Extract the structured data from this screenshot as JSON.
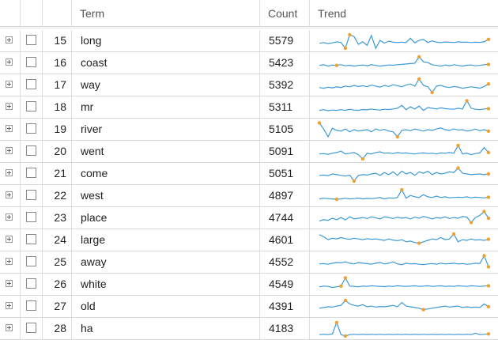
{
  "header": {
    "term": "Term",
    "count": "Count",
    "trend": "Trend"
  },
  "colors": {
    "line": "#3d9ad6",
    "marker": "#f0a030",
    "grid_line": "#d9d9d9",
    "text": "#222222"
  },
  "icons": {
    "expander": "plus-square-icon",
    "select": "checkbox-icon"
  },
  "rows": [
    {
      "index": "15",
      "term": "long",
      "count": "5579",
      "trend": [
        0.35,
        0.4,
        0.32,
        0.38,
        0.45,
        0.4,
        0.0,
        0.95,
        0.82,
        0.28,
        0.45,
        0.2,
        0.9,
        0.0,
        0.55,
        0.36,
        0.5,
        0.42,
        0.4,
        0.42,
        0.4,
        0.7,
        0.38,
        0.55,
        0.62,
        0.4,
        0.52,
        0.42,
        0.4,
        0.44,
        0.42,
        0.4,
        0.45,
        0.42,
        0.43,
        0.4,
        0.42,
        0.41,
        0.45,
        0.62
      ],
      "markers": [
        6,
        7,
        39
      ]
    },
    {
      "index": "16",
      "term": "coast",
      "count": "5423",
      "trend": [
        0.35,
        0.4,
        0.3,
        0.38,
        0.35,
        0.4,
        0.32,
        0.36,
        0.3,
        0.35,
        0.38,
        0.32,
        0.4,
        0.35,
        0.3,
        0.34,
        0.38,
        0.36,
        0.4,
        0.42,
        0.45,
        0.48,
        0.5,
        0.95,
        0.6,
        0.55,
        0.4,
        0.35,
        0.3,
        0.38,
        0.32,
        0.4,
        0.35,
        0.3,
        0.36,
        0.38,
        0.32,
        0.35,
        0.4,
        0.42
      ],
      "markers": [
        4,
        23,
        39
      ]
    },
    {
      "index": "17",
      "term": "way",
      "count": "5392",
      "trend": [
        0.35,
        0.3,
        0.38,
        0.32,
        0.4,
        0.35,
        0.45,
        0.4,
        0.5,
        0.42,
        0.48,
        0.4,
        0.52,
        0.45,
        0.38,
        0.5,
        0.42,
        0.55,
        0.48,
        0.4,
        0.52,
        0.6,
        0.45,
        0.95,
        0.5,
        0.4,
        0.0,
        0.45,
        0.5,
        0.4,
        0.35,
        0.42,
        0.38,
        0.3,
        0.35,
        0.4,
        0.36,
        0.3,
        0.42,
        0.6
      ],
      "markers": [
        23,
        26,
        39
      ]
    },
    {
      "index": "18",
      "term": "mr",
      "count": "5311",
      "trend": [
        0.3,
        0.35,
        0.28,
        0.32,
        0.3,
        0.35,
        0.3,
        0.38,
        0.32,
        0.3,
        0.36,
        0.34,
        0.4,
        0.35,
        0.32,
        0.38,
        0.36,
        0.4,
        0.45,
        0.65,
        0.35,
        0.55,
        0.4,
        0.6,
        0.3,
        0.5,
        0.45,
        0.4,
        0.48,
        0.42,
        0.4,
        0.38,
        0.45,
        0.4,
        0.98,
        0.45,
        0.38,
        0.35,
        0.4,
        0.42
      ],
      "markers": [
        34,
        39
      ]
    },
    {
      "index": "19",
      "term": "river",
      "count": "5105",
      "trend": [
        0.98,
        0.55,
        0.0,
        0.6,
        0.45,
        0.4,
        0.55,
        0.35,
        0.5,
        0.4,
        0.45,
        0.5,
        0.35,
        0.55,
        0.45,
        0.52,
        0.4,
        0.35,
        0.0,
        0.45,
        0.5,
        0.42,
        0.55,
        0.48,
        0.4,
        0.5,
        0.45,
        0.55,
        0.62,
        0.5,
        0.45,
        0.55,
        0.48,
        0.5,
        0.4,
        0.45,
        0.55,
        0.42,
        0.5,
        0.4
      ],
      "markers": [
        0,
        18,
        39
      ]
    },
    {
      "index": "20",
      "term": "went",
      "count": "5091",
      "trend": [
        0.35,
        0.38,
        0.32,
        0.4,
        0.45,
        0.55,
        0.35,
        0.4,
        0.45,
        0.3,
        0.0,
        0.4,
        0.35,
        0.45,
        0.5,
        0.4,
        0.42,
        0.38,
        0.45,
        0.4,
        0.42,
        0.38,
        0.35,
        0.4,
        0.42,
        0.38,
        0.4,
        0.35,
        0.42,
        0.4,
        0.45,
        0.4,
        0.95,
        0.35,
        0.4,
        0.3,
        0.38,
        0.42,
        0.8,
        0.45
      ],
      "markers": [
        10,
        32,
        39
      ]
    },
    {
      "index": "21",
      "term": "come",
      "count": "5051",
      "trend": [
        0.4,
        0.42,
        0.38,
        0.5,
        0.45,
        0.4,
        0.35,
        0.42,
        0.0,
        0.4,
        0.45,
        0.42,
        0.5,
        0.55,
        0.4,
        0.6,
        0.45,
        0.65,
        0.4,
        0.7,
        0.5,
        0.6,
        0.4,
        0.65,
        0.55,
        0.7,
        0.45,
        0.6,
        0.5,
        0.55,
        0.65,
        0.6,
        0.92,
        0.55,
        0.5,
        0.45,
        0.48,
        0.5,
        0.45,
        0.5
      ],
      "markers": [
        8,
        32,
        39
      ]
    },
    {
      "index": "22",
      "term": "west",
      "count": "4897",
      "trend": [
        0.3,
        0.35,
        0.32,
        0.3,
        0.28,
        0.3,
        0.35,
        0.3,
        0.32,
        0.36,
        0.3,
        0.34,
        0.32,
        0.35,
        0.4,
        0.3,
        0.38,
        0.35,
        0.4,
        0.95,
        0.35,
        0.55,
        0.45,
        0.4,
        0.6,
        0.45,
        0.4,
        0.5,
        0.4,
        0.45,
        0.38,
        0.4,
        0.42,
        0.4,
        0.45,
        0.38,
        0.42,
        0.4,
        0.38,
        0.42
      ],
      "markers": [
        4,
        19,
        39
      ]
    },
    {
      "index": "23",
      "term": "place",
      "count": "4744",
      "trend": [
        0.3,
        0.4,
        0.35,
        0.5,
        0.4,
        0.55,
        0.38,
        0.6,
        0.45,
        0.5,
        0.55,
        0.48,
        0.6,
        0.52,
        0.45,
        0.6,
        0.55,
        0.48,
        0.58,
        0.5,
        0.55,
        0.45,
        0.58,
        0.5,
        0.62,
        0.55,
        0.45,
        0.55,
        0.5,
        0.6,
        0.48,
        0.55,
        0.5,
        0.62,
        0.58,
        0.2,
        0.55,
        0.7,
        0.98,
        0.5
      ],
      "markers": [
        35,
        38,
        39
      ]
    },
    {
      "index": "24",
      "term": "large",
      "count": "4601",
      "trend": [
        0.9,
        0.75,
        0.55,
        0.65,
        0.6,
        0.7,
        0.62,
        0.58,
        0.65,
        0.6,
        0.55,
        0.62,
        0.58,
        0.6,
        0.55,
        0.5,
        0.6,
        0.52,
        0.48,
        0.55,
        0.4,
        0.45,
        0.35,
        0.3,
        0.4,
        0.5,
        0.6,
        0.55,
        0.7,
        0.55,
        0.6,
        0.95,
        0.4,
        0.55,
        0.5,
        0.6,
        0.52,
        0.55,
        0.5,
        0.58
      ],
      "markers": [
        23,
        31,
        39
      ]
    },
    {
      "index": "25",
      "term": "away",
      "count": "4552",
      "trend": [
        0.4,
        0.42,
        0.38,
        0.45,
        0.5,
        0.48,
        0.55,
        0.45,
        0.4,
        0.5,
        0.45,
        0.42,
        0.38,
        0.45,
        0.5,
        0.4,
        0.45,
        0.55,
        0.4,
        0.35,
        0.45,
        0.4,
        0.42,
        0.38,
        0.35,
        0.4,
        0.42,
        0.38,
        0.45,
        0.4,
        0.42,
        0.45,
        0.4,
        0.42,
        0.38,
        0.4,
        0.45,
        0.42,
        0.98,
        0.2
      ],
      "markers": [
        38,
        39
      ]
    },
    {
      "index": "26",
      "term": "white",
      "count": "4549",
      "trend": [
        0.35,
        0.4,
        0.38,
        0.3,
        0.35,
        0.4,
        0.98,
        0.4,
        0.38,
        0.35,
        0.4,
        0.38,
        0.42,
        0.4,
        0.38,
        0.36,
        0.4,
        0.38,
        0.42,
        0.4,
        0.38,
        0.4,
        0.42,
        0.38,
        0.4,
        0.42,
        0.38,
        0.4,
        0.42,
        0.38,
        0.4,
        0.38,
        0.42,
        0.4,
        0.38,
        0.42,
        0.4,
        0.38,
        0.4,
        0.42
      ],
      "markers": [
        5,
        6,
        39
      ]
    },
    {
      "index": "27",
      "term": "old",
      "count": "4391",
      "trend": [
        0.4,
        0.45,
        0.5,
        0.48,
        0.55,
        0.6,
        0.95,
        0.7,
        0.6,
        0.55,
        0.65,
        0.5,
        0.55,
        0.48,
        0.52,
        0.5,
        0.55,
        0.6,
        0.5,
        0.8,
        0.55,
        0.5,
        0.45,
        0.4,
        0.3,
        0.35,
        0.4,
        0.45,
        0.5,
        0.55,
        0.48,
        0.52,
        0.55,
        0.45,
        0.5,
        0.45,
        0.48,
        0.45,
        0.7,
        0.5
      ],
      "markers": [
        6,
        24,
        39
      ]
    },
    {
      "index": "28",
      "term": "ha",
      "count": "4183",
      "trend": [
        0.1,
        0.12,
        0.1,
        0.15,
        0.95,
        0.1,
        0.0,
        0.1,
        0.12,
        0.1,
        0.12,
        0.1,
        0.12,
        0.1,
        0.12,
        0.1,
        0.12,
        0.1,
        0.12,
        0.1,
        0.12,
        0.1,
        0.12,
        0.1,
        0.12,
        0.1,
        0.12,
        0.1,
        0.12,
        0.1,
        0.12,
        0.1,
        0.12,
        0.1,
        0.12,
        0.1,
        0.2,
        0.1,
        0.12,
        0.15
      ],
      "markers": [
        4,
        6,
        39
      ]
    }
  ]
}
